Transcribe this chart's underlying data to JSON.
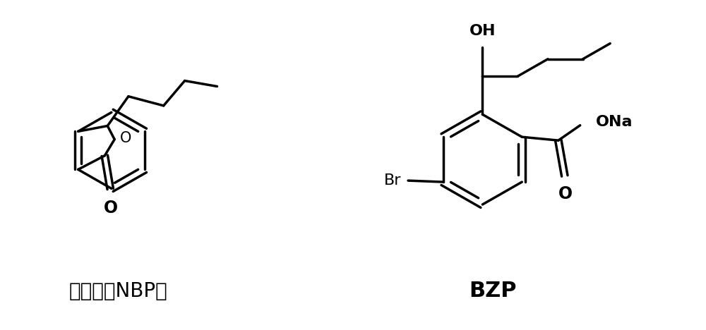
{
  "background_color": "#ffffff",
  "lw": 2.5,
  "label_nbp": "丁苯酞（NBP）",
  "label_bzp": "BZP",
  "label_oh": "OH",
  "label_o_na": "ONa",
  "label_br": "Br",
  "label_o_furan": "O",
  "label_o_carbonyl_nbp": "O",
  "label_o_carbonyl_bzp": "O"
}
